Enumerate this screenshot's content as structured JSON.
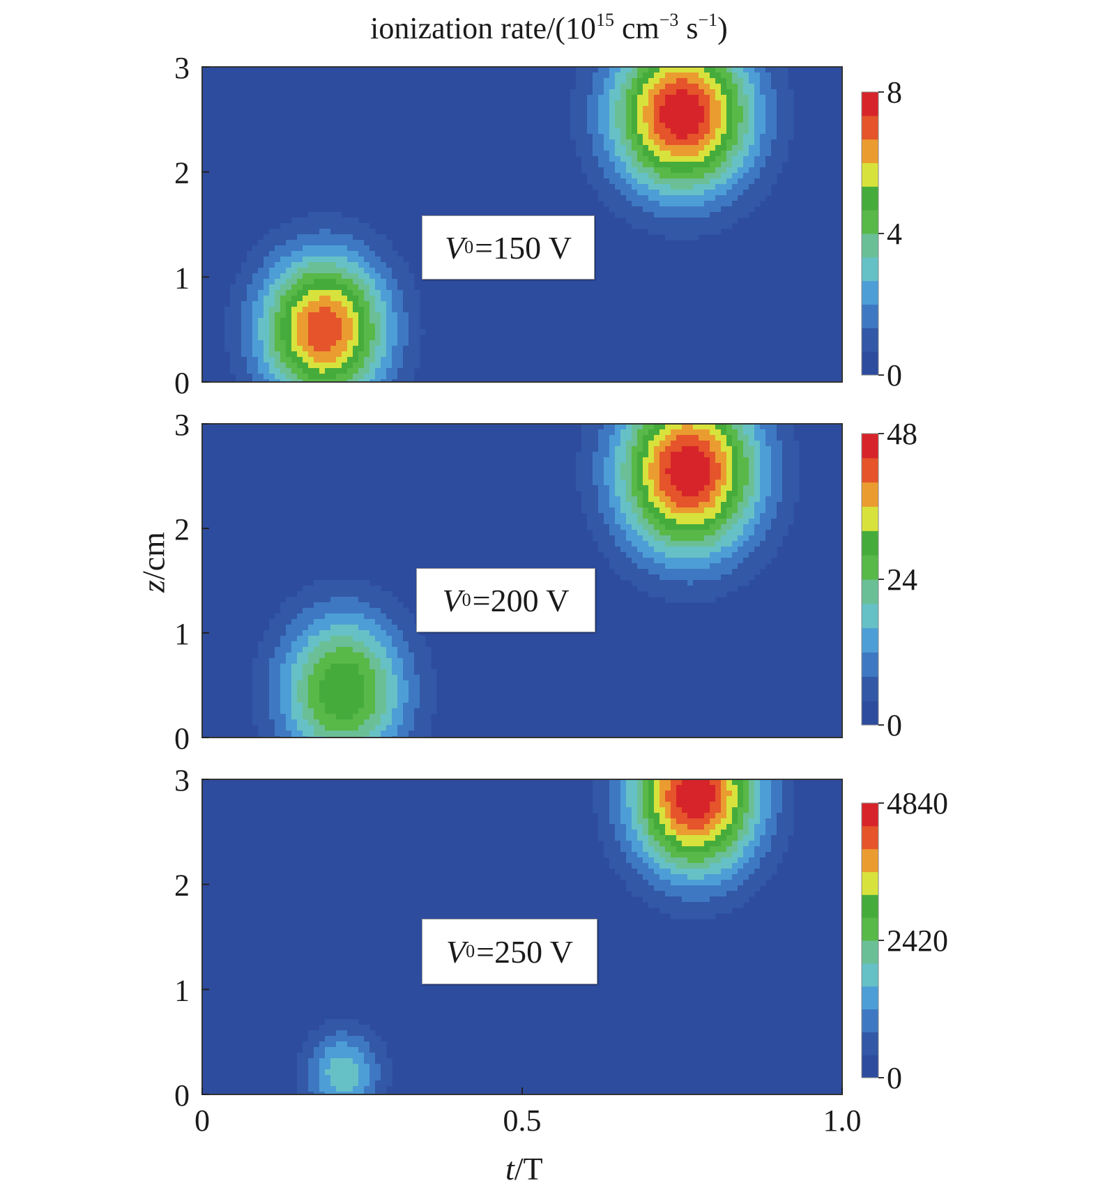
{
  "title": {
    "prefix": "ionization rate/(10",
    "exp1": "15",
    "unit1": " cm",
    "exp2": "−3",
    "unit2": " s",
    "exp3": "−1",
    "suffix": ")"
  },
  "axes": {
    "x_var": "t",
    "x_unit": "/T",
    "y_var": "z",
    "y_unit": "/cm"
  },
  "chart_data": [
    {
      "type": "heatmap",
      "label_var": "V",
      "label_sub": "0",
      "label_rest": "=150 V",
      "xlim": [
        0,
        1.0
      ],
      "ylim": [
        0,
        3
      ],
      "x_ticks": [
        "0",
        "0.5",
        "1.0"
      ],
      "y_ticks": [
        "0",
        "1",
        "2",
        "3"
      ],
      "colorbar": {
        "min": 0,
        "max": 8,
        "tick_labels": [
          "0",
          "4",
          "8"
        ]
      },
      "peaks": [
        {
          "t": 0.19,
          "z": 0.5,
          "value": 7.2,
          "spread_t": 0.1,
          "spread_z": 0.72
        },
        {
          "t": 0.75,
          "z": 2.55,
          "value": 8.0,
          "spread_t": 0.11,
          "spread_z": 0.75
        }
      ]
    },
    {
      "type": "heatmap",
      "label_var": "V",
      "label_sub": "0",
      "label_rest": "=200 V",
      "xlim": [
        0,
        1.0
      ],
      "ylim": [
        0,
        3
      ],
      "x_ticks": [
        "0",
        "0.5",
        "1.0"
      ],
      "y_ticks": [
        "0",
        "1",
        "2",
        "3"
      ],
      "colorbar": {
        "min": 0,
        "max": 48,
        "tick_labels": [
          "0",
          "24",
          "48"
        ]
      },
      "peaks": [
        {
          "t": 0.22,
          "z": 0.45,
          "value": 32,
          "spread_t": 0.1,
          "spread_z": 0.75
        },
        {
          "t": 0.76,
          "z": 2.55,
          "value": 48,
          "spread_t": 0.11,
          "spread_z": 0.8
        }
      ]
    },
    {
      "type": "heatmap",
      "label_var": "V",
      "label_sub": "0",
      "label_rest": "=250 V",
      "xlim": [
        0,
        1.0
      ],
      "ylim": [
        0,
        3
      ],
      "x_ticks": [
        "0",
        "0.5",
        "1.0"
      ],
      "y_ticks": [
        "0",
        "1",
        "2",
        "3"
      ],
      "colorbar": {
        "min": 0,
        "max": 4840,
        "tick_labels": [
          "0",
          "2420",
          "4840"
        ]
      },
      "peaks": [
        {
          "t": 0.22,
          "z": 0.2,
          "value": 1900,
          "spread_t": 0.06,
          "spread_z": 0.42
        },
        {
          "t": 0.77,
          "z": 2.85,
          "value": 4840,
          "spread_t": 0.1,
          "spread_z": 0.75
        }
      ]
    }
  ],
  "colormap": [
    "#2e4c9e",
    "#3258a6",
    "#3e78c2",
    "#4d9ed6",
    "#66c1c6",
    "#6bbf96",
    "#58b848",
    "#45ac3c",
    "#d8e23c",
    "#eb9c30",
    "#e5542a",
    "#d7242a"
  ]
}
